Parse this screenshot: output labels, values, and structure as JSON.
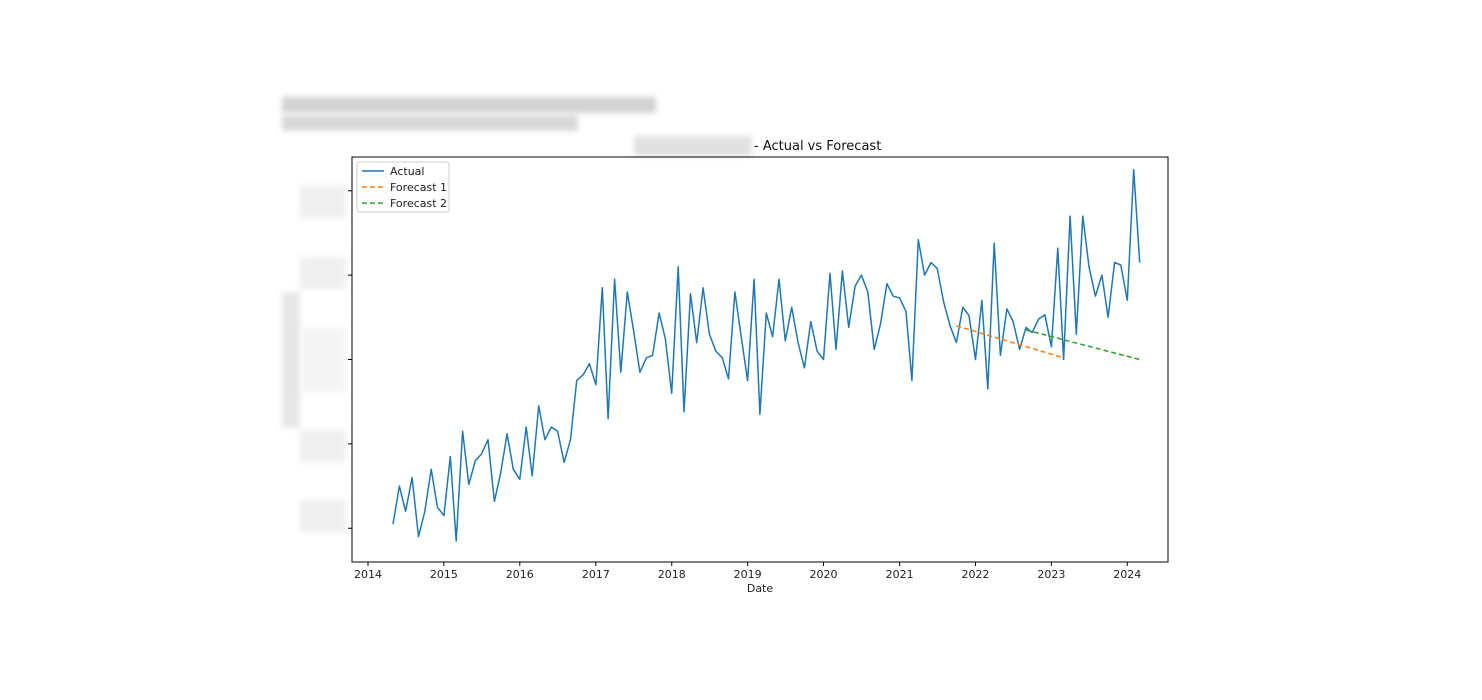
{
  "chart_data": {
    "type": "line",
    "title": "- Actual vs Forecast",
    "xlabel": "Date",
    "ylabel": "",
    "x_ticks": [
      "2014",
      "2015",
      "2016",
      "2017",
      "2018",
      "2019",
      "2020",
      "2021",
      "2022",
      "2023",
      "2024"
    ],
    "xlim": [
      "2013-10-16",
      "2024-07-15"
    ],
    "ylim": [
      -0.4,
      4.4
    ],
    "y_ticks": [
      0,
      1,
      2,
      3,
      4
    ],
    "y_ticks_labelled": false,
    "grid": false,
    "legend": "top-left",
    "series": [
      {
        "name": "Actual",
        "color": "#1f77b4",
        "style": "solid",
        "start": "2014-05-01",
        "step": "month",
        "values": [
          0.05,
          0.5,
          0.2,
          0.6,
          -0.1,
          0.2,
          0.7,
          0.25,
          0.15,
          0.85,
          -0.15,
          1.15,
          0.52,
          0.8,
          0.88,
          1.05,
          0.32,
          0.65,
          1.12,
          0.7,
          0.58,
          1.2,
          0.62,
          1.45,
          1.05,
          1.2,
          1.15,
          0.78,
          1.05,
          1.75,
          1.82,
          1.95,
          1.7,
          2.85,
          1.3,
          2.95,
          1.85,
          2.8,
          2.35,
          1.85,
          2.02,
          2.05,
          2.55,
          2.25,
          1.6,
          3.1,
          1.38,
          2.78,
          2.2,
          2.85,
          2.3,
          2.1,
          2.02,
          1.77,
          2.8,
          2.27,
          1.75,
          2.95,
          1.35,
          2.55,
          2.27,
          2.95,
          2.22,
          2.62,
          2.2,
          1.9,
          2.45,
          2.1,
          2.0,
          3.02,
          2.12,
          3.05,
          2.38,
          2.87,
          3.0,
          2.8,
          2.12,
          2.42,
          2.9,
          2.75,
          2.73,
          2.57,
          1.75,
          3.42,
          3.0,
          3.15,
          3.08,
          2.68,
          2.4,
          2.2,
          2.62,
          2.52,
          2.0,
          2.7,
          1.65,
          3.38,
          2.05,
          2.6,
          2.45,
          2.12,
          2.38,
          2.32,
          2.48,
          2.53,
          2.15,
          3.32,
          2.0,
          3.7,
          2.3,
          3.7,
          3.1,
          2.75,
          3.0,
          2.5,
          3.15,
          3.12,
          2.7,
          4.25,
          3.15
        ]
      },
      {
        "name": "Forecast 1",
        "color": "#ff7f0e",
        "style": "dashed",
        "x": [
          "2021-10-01",
          "2023-03-01"
        ],
        "values": [
          2.4,
          2.02
        ]
      },
      {
        "name": "Forecast 2",
        "color": "#2ca02c",
        "style": "dashed",
        "x": [
          "2022-09-01",
          "2024-03-01"
        ],
        "values": [
          2.35,
          2.0
        ]
      }
    ]
  }
}
